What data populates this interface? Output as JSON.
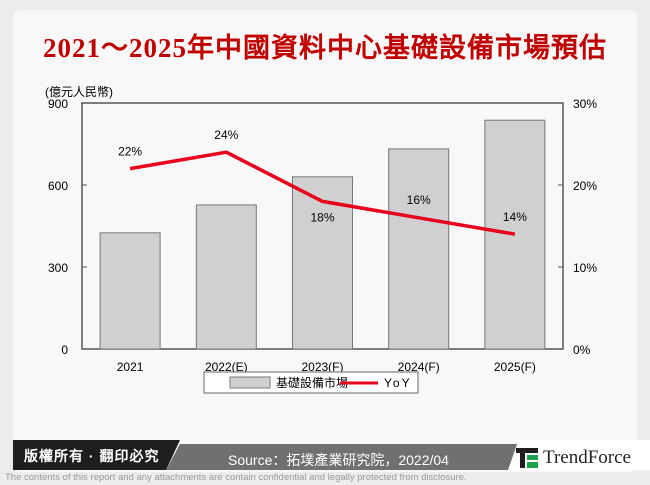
{
  "title": "2021～2025年中國資料中心基礎設備市場預估",
  "chart_data": {
    "type": "bar+line",
    "title": "2021～2025年中國資料中心基礎設備市場預估",
    "ylabel": "(億元人民幣)",
    "categories": [
      "2021",
      "2022(E)",
      "2023(F)",
      "2024(F)",
      "2025(F)"
    ],
    "series": [
      {
        "name": "基礎設備市場",
        "type": "bar",
        "axis": "left",
        "values": [
          425,
          527,
          630,
          732,
          837
        ],
        "color": "#d0d0d0"
      },
      {
        "name": "YoY",
        "type": "line",
        "axis": "right",
        "values": [
          22,
          24,
          18,
          16,
          14
        ],
        "labels": [
          "22%",
          "24%",
          "18%",
          "16%",
          "14%"
        ],
        "color": "#e8001c"
      }
    ],
    "ylim": [
      0,
      900
    ],
    "yticks": [
      "0",
      "300",
      "600",
      "900"
    ],
    "y2lim": [
      0,
      30
    ],
    "y2ticks": [
      "0%",
      "10%",
      "20%",
      "30%"
    ],
    "grid": false,
    "legend_position": "bottom"
  },
  "footer": {
    "copyright": "版權所有 · 翻印必究",
    "source": "Source：拓墣產業研究院，2022/04",
    "brand": "TrendForce",
    "disclaimer": "The contents of this report and any attachments are contain confidential and legally protected from disclosure."
  }
}
